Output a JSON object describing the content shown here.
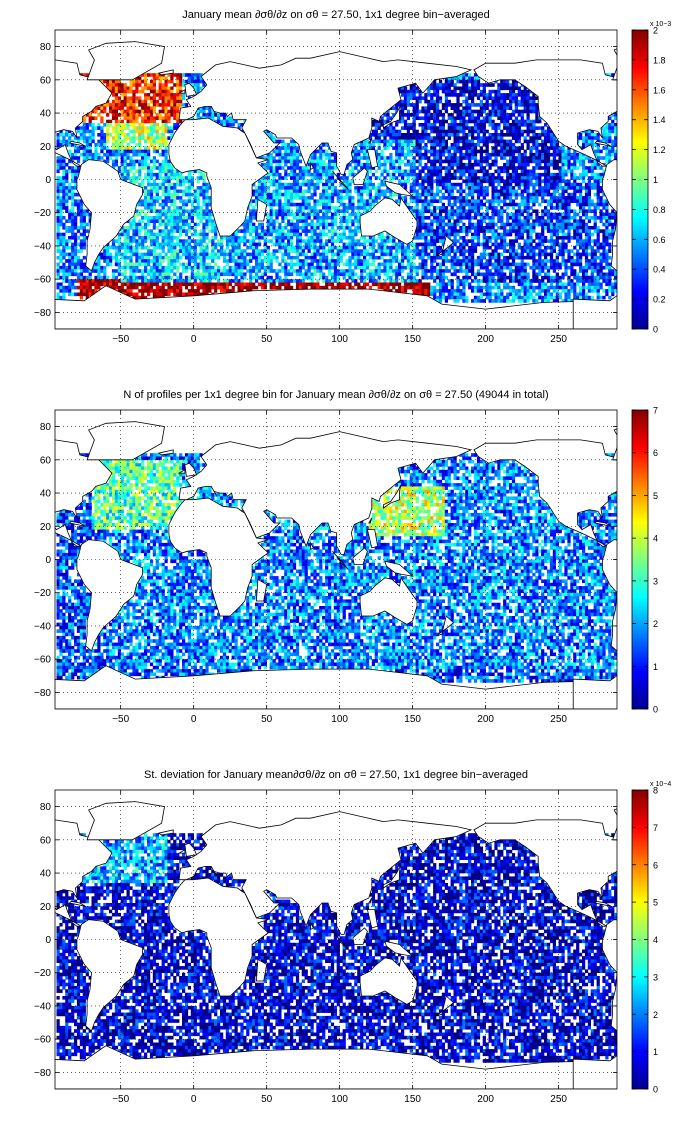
{
  "chart_data": [
    {
      "type": "heatmap",
      "title": "January mean ∂σθ/∂z on σθ = 27.50, 1x1 degree bin−averaged",
      "xlim": [
        -95,
        290
      ],
      "ylim": [
        -90,
        90
      ],
      "xticks": [
        -50,
        0,
        50,
        100,
        150,
        200,
        250
      ],
      "yticks": [
        80,
        60,
        40,
        20,
        0,
        -20,
        -40,
        -60,
        -80
      ],
      "xtick_labels": [
        "−50",
        "0",
        "50",
        "100",
        "150",
        "200",
        "250"
      ],
      "ytick_labels": [
        "80",
        "60",
        "40",
        "20",
        "0",
        "−20",
        "−40",
        "−60",
        "−80"
      ],
      "grid": true,
      "colormap": "jet",
      "colorbar": {
        "range": [
          0,
          2
        ],
        "exponent_label": "x 10−3",
        "ticks": [
          0,
          0.2,
          0.4,
          0.6,
          0.8,
          1,
          1.2,
          1.4,
          1.6,
          1.8,
          2
        ],
        "tick_labels": [
          "0",
          "0.2",
          "0.4",
          "0.6",
          "0.8",
          "1",
          "1.2",
          "1.4",
          "1.6",
          "1.8",
          "2"
        ]
      },
      "regions": [
        {
          "lon_range": [
            -80,
            -10
          ],
          "lat_range": [
            35,
            65
          ],
          "level": 0.85
        },
        {
          "lon_range": [
            -60,
            -20
          ],
          "lat_range": [
            20,
            40
          ],
          "level": 0.55
        },
        {
          "lon_range": [
            -50,
            20
          ],
          "lat_range": [
            -60,
            10
          ],
          "level": 0.32
        },
        {
          "lon_range": [
            20,
            150
          ],
          "lat_range": [
            -60,
            25
          ],
          "level": 0.28
        },
        {
          "lon_range": [
            120,
            250
          ],
          "lat_range": [
            0,
            60
          ],
          "level": 0.1
        },
        {
          "lon_range": [
            150,
            290
          ],
          "lat_range": [
            -60,
            0
          ],
          "level": 0.18
        },
        {
          "lon_range": [
            -80,
            160
          ],
          "lat_range": [
            -72,
            -60
          ],
          "level": 1.0
        }
      ]
    },
    {
      "type": "heatmap",
      "title": "N of profiles per 1x1 degree bin for January mean ∂σθ/∂z on σθ = 27.50 (49044 in total)",
      "xlim": [
        -95,
        290
      ],
      "ylim": [
        -90,
        90
      ],
      "xticks": [
        -50,
        0,
        50,
        100,
        150,
        200,
        250
      ],
      "yticks": [
        80,
        60,
        40,
        20,
        0,
        -20,
        -40,
        -60,
        -80
      ],
      "xtick_labels": [
        "−50",
        "0",
        "50",
        "100",
        "150",
        "200",
        "250"
      ],
      "ytick_labels": [
        "80",
        "60",
        "40",
        "20",
        "0",
        "−20",
        "−40",
        "−60",
        "−80"
      ],
      "grid": true,
      "colormap": "jet",
      "total_profiles": 49044,
      "colorbar": {
        "range": [
          0,
          7
        ],
        "exponent_label": "",
        "ticks": [
          0,
          1,
          2,
          3,
          4,
          5,
          6,
          7
        ],
        "tick_labels": [
          "0",
          "1",
          "2",
          "3",
          "4",
          "5",
          "6",
          "7"
        ]
      },
      "regions": [
        {
          "lon_range": [
            -70,
            -10
          ],
          "lat_range": [
            20,
            60
          ],
          "level": 0.45
        },
        {
          "lon_range": [
            120,
            170
          ],
          "lat_range": [
            15,
            45
          ],
          "level": 0.55
        },
        {
          "lon_range": [
            -60,
            290
          ],
          "lat_range": [
            -65,
            60
          ],
          "level": 0.25
        }
      ]
    },
    {
      "type": "heatmap",
      "title": "St. deviation for January mean∂σθ/∂z on σθ = 27.50, 1x1 degree bin−averaged",
      "xlim": [
        -95,
        290
      ],
      "ylim": [
        -90,
        90
      ],
      "xticks": [
        -50,
        0,
        50,
        100,
        150,
        200,
        250
      ],
      "yticks": [
        80,
        60,
        40,
        20,
        0,
        -20,
        -40,
        -60,
        -80
      ],
      "xtick_labels": [
        "−50",
        "0",
        "50",
        "100",
        "150",
        "200",
        "250"
      ],
      "ytick_labels": [
        "80",
        "60",
        "40",
        "20",
        "0",
        "−20",
        "−40",
        "−60",
        "−80"
      ],
      "grid": true,
      "colormap": "jet",
      "colorbar": {
        "range": [
          0,
          8
        ],
        "exponent_label": "x 10−4",
        "ticks": [
          0,
          1,
          2,
          3,
          4,
          5,
          6,
          7,
          8
        ],
        "tick_labels": [
          "0",
          "1",
          "2",
          "3",
          "4",
          "5",
          "6",
          "7",
          "8"
        ]
      },
      "regions": [
        {
          "lon_range": [
            -80,
            -20
          ],
          "lat_range": [
            35,
            65
          ],
          "level": 0.3
        },
        {
          "lon_range": [
            -60,
            290
          ],
          "lat_range": [
            -65,
            60
          ],
          "level": 0.08
        }
      ]
    }
  ]
}
